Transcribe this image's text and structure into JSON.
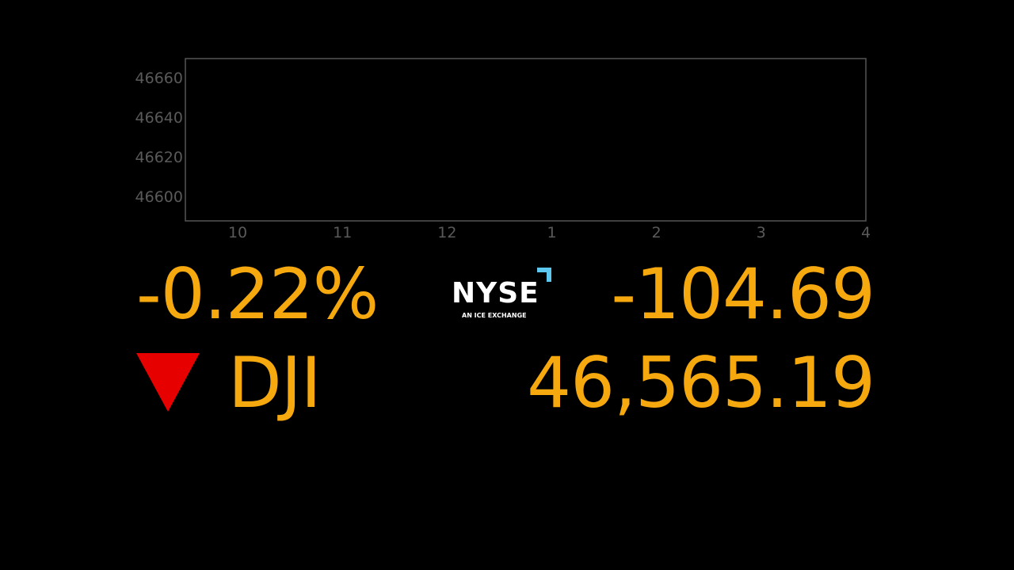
{
  "chart_data": {
    "type": "line",
    "title": "",
    "xlabel": "",
    "ylabel": "",
    "xlim": [
      9.5,
      16
    ],
    "ylim": [
      46587.6,
      46669.6
    ],
    "x_ticks": [
      {
        "value": 10,
        "label": "10"
      },
      {
        "value": 11,
        "label": "11"
      },
      {
        "value": 12,
        "label": "12"
      },
      {
        "value": 13,
        "label": "1"
      },
      {
        "value": 14,
        "label": "2"
      },
      {
        "value": 15,
        "label": "3"
      },
      {
        "value": 16,
        "label": "4"
      }
    ],
    "y_ticks": [
      {
        "value": 46600,
        "label": "46600"
      },
      {
        "value": 46620,
        "label": "46620"
      },
      {
        "value": 46640,
        "label": "46640"
      },
      {
        "value": 46660,
        "label": "46660"
      }
    ],
    "series": [],
    "grid": false
  },
  "quote": {
    "percent_change": "-0.22%",
    "point_change": "-104.69",
    "symbol": "DJI",
    "price": "46,565.19",
    "direction": "down",
    "up_color": "#f6a90f",
    "down_icon_color": "#e60000"
  },
  "logo": {
    "name": "NYSE",
    "tagline": "AN ICE EXCHANGE",
    "accent_color": "#5cc8f0"
  }
}
